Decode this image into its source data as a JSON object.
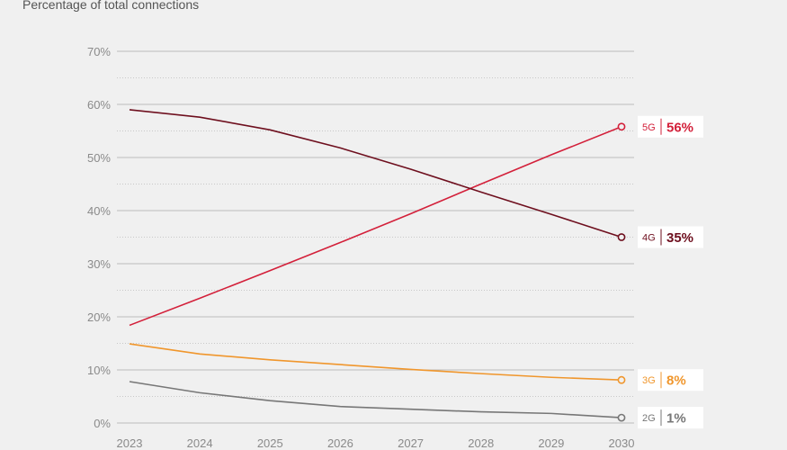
{
  "chart_data": {
    "type": "line",
    "subtitle": "Percentage of total connections",
    "x": [
      "2023",
      "2024",
      "2025",
      "2026",
      "2027",
      "2028",
      "2029",
      "2030"
    ],
    "ylim": [
      0,
      70
    ],
    "yticks": [
      "0%",
      "10%",
      "20%",
      "30%",
      "40%",
      "50%",
      "60%",
      "70%"
    ],
    "grid": true,
    "series": [
      {
        "name": "5G",
        "color": "#d3203a",
        "values": [
          18.4,
          23.5,
          28.7,
          34.0,
          39.4,
          45.0,
          50.5,
          55.8
        ],
        "end_label": "56%"
      },
      {
        "name": "4G",
        "color": "#6e0f1e",
        "values": [
          59.0,
          57.6,
          55.2,
          51.8,
          47.8,
          43.5,
          39.3,
          35.0
        ],
        "end_label": "35%"
      },
      {
        "name": "3G",
        "color": "#f0962c",
        "values": [
          14.9,
          13.0,
          11.9,
          11.0,
          10.1,
          9.3,
          8.6,
          8.1
        ],
        "end_label": "8%"
      },
      {
        "name": "2G",
        "color": "#777777",
        "values": [
          7.8,
          5.7,
          4.2,
          3.1,
          2.6,
          2.1,
          1.8,
          1.0
        ],
        "end_label": "1%"
      }
    ]
  }
}
